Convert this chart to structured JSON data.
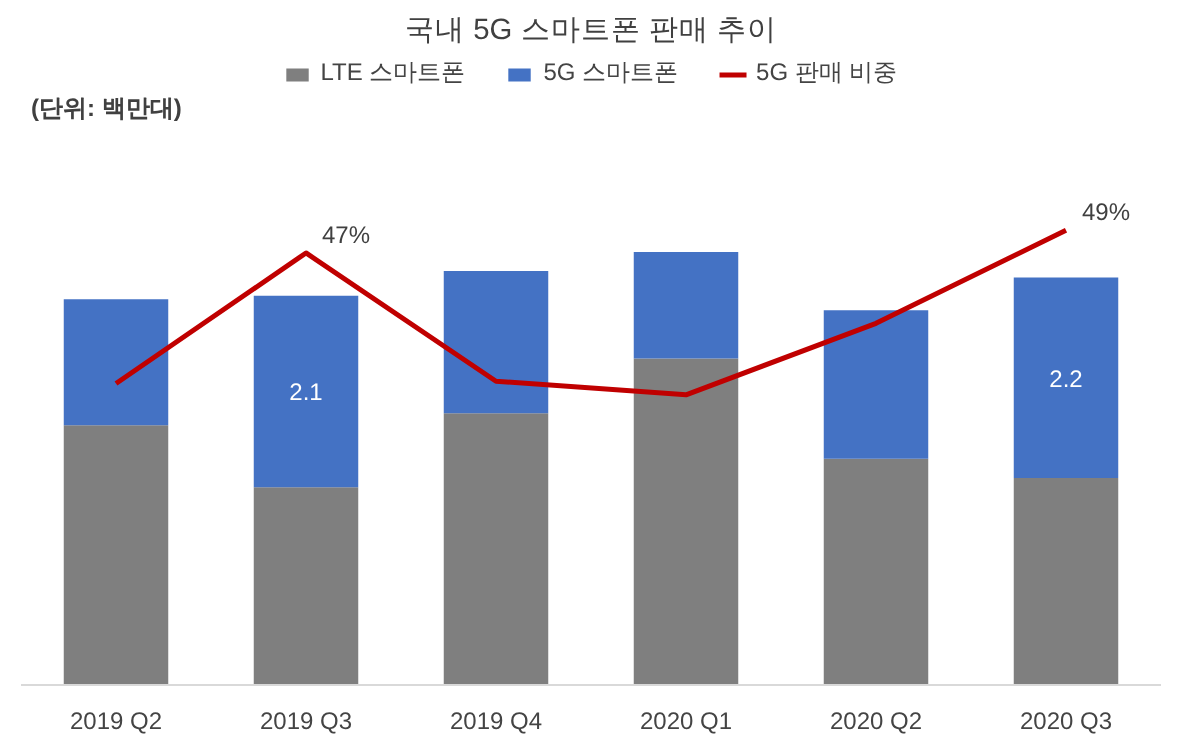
{
  "chart_data": {
    "type": "bar",
    "title": "국내 5G 스마트폰 판매 추이",
    "stacked": true,
    "legend": "top",
    "grid": false,
    "categories": [
      "2019 Q2",
      "2019 Q3",
      "2019 Q4",
      "2020 Q1",
      "2020 Q2",
      "2020 Q3"
    ],
    "annotations": [
      "(단위: 백만대)"
    ],
    "series": [
      {
        "name": "LTE 스마트폰",
        "color": "#7f7f7f",
        "values": [
          2.85,
          2.17,
          2.98,
          3.58,
          2.48,
          2.27
        ]
      },
      {
        "name": "5G 스마트폰",
        "color": "#4472c4",
        "values": [
          1.38,
          2.1,
          1.56,
          1.17,
          1.63,
          2.2
        ],
        "value_labels": [
          null,
          "2.1",
          null,
          null,
          null,
          "2.2"
        ]
      },
      {
        "name": "5G 판매 비중",
        "type": "line",
        "axis": "y2",
        "color": "#c00000",
        "values": [
          35.5,
          47,
          35.7,
          34.5,
          40.8,
          49
        ],
        "value_labels": [
          null,
          "47%",
          null,
          null,
          null,
          "49%"
        ]
      }
    ]
  }
}
